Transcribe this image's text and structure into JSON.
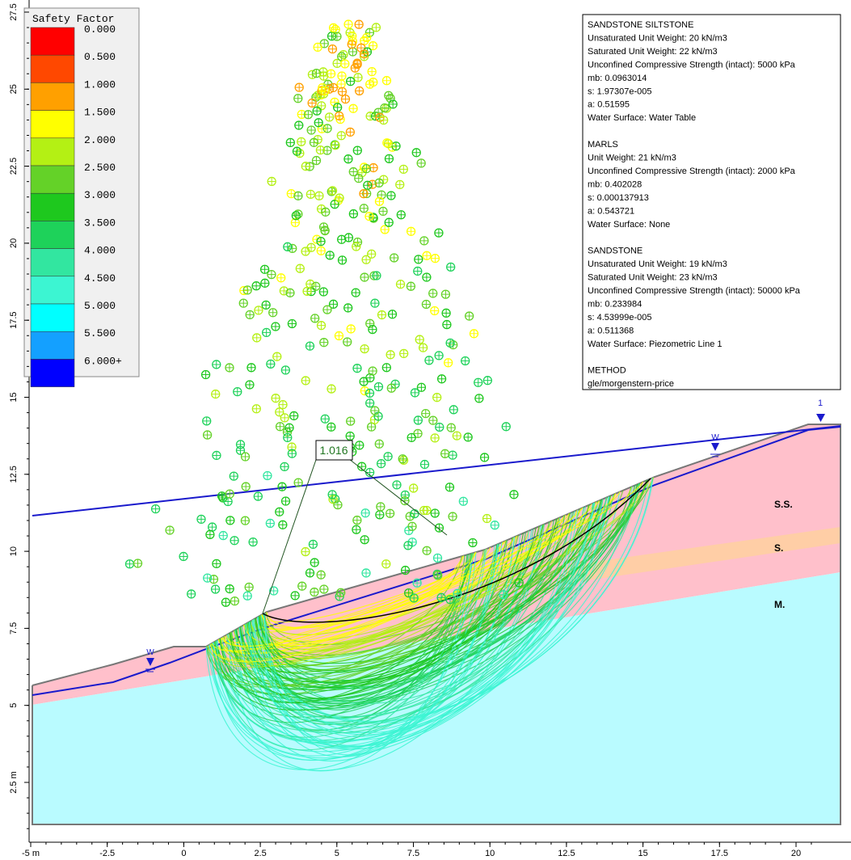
{
  "legend": {
    "title": "Safety Factor",
    "entries": [
      {
        "label": "0.000",
        "color": "#ff0000"
      },
      {
        "label": "0.500",
        "color": "#ff4800"
      },
      {
        "label": "1.000",
        "color": "#ffa000"
      },
      {
        "label": "1.500",
        "color": "#ffff00"
      },
      {
        "label": "2.000",
        "color": "#b4f014"
      },
      {
        "label": "2.500",
        "color": "#64d228"
      },
      {
        "label": "3.000",
        "color": "#1ec81e"
      },
      {
        "label": "3.500",
        "color": "#1ed25a"
      },
      {
        "label": "4.000",
        "color": "#32e6a0"
      },
      {
        "label": "4.500",
        "color": "#3cf5d2"
      },
      {
        "label": "5.000",
        "color": "#00ffff"
      },
      {
        "label": "5.500",
        "color": "#14a0ff"
      },
      {
        "label": "6.000+",
        "color": "#0000ff"
      }
    ]
  },
  "info": [
    {
      "name": "SANDSTONE  SILTSTONE",
      "lines": [
        "Unsaturated Unit Weight: 20 kN/m3",
        "Saturated Unit Weight: 22 kN/m3",
        "Unconfined Compressive Strength (intact): 5000 kPa",
        "mb: 0.0963014",
        "s: 1.97307e-005",
        "a: 0.51595",
        "Water Surface: Water Table"
      ]
    },
    {
      "name": "MARLS",
      "lines": [
        "Unit Weight: 21 kN/m3",
        "Unconfined Compressive Strength (intact): 2000 kPa",
        "mb: 0.402028",
        "s: 0.000137913",
        "a: 0.543721",
        "Water Surface: None"
      ]
    },
    {
      "name": "SANDSTONE",
      "lines": [
        "Unsaturated Unit Weight: 19 kN/m3",
        "Saturated Unit Weight: 23 kN/m3",
        "Unconfined Compressive Strength (intact): 50000 kPa",
        "mb: 0.233984",
        "s: 4.53999e-005",
        "a: 0.511368",
        "Water Surface: Piezometric Line 1"
      ]
    },
    {
      "name": "METHOD",
      "lines": [
        "gle/morgenstern-price"
      ]
    }
  ],
  "axes": {
    "x_labels": [
      "-5 m",
      "-2.5",
      "0",
      "2.5",
      "5",
      "7.5",
      "10",
      "12.5",
      "15",
      "17.5",
      "20"
    ],
    "y_labels": [
      "27.5",
      "25",
      "22.5",
      "20",
      "17.5",
      "15",
      "12.5",
      "10",
      "7.5",
      "5",
      "2.5 m"
    ]
  },
  "annotations": {
    "critical_factor": "1.016",
    "layers": [
      "S.S.",
      "S.",
      "M."
    ],
    "water_marks": [
      "W",
      "W"
    ],
    "piezo_label": "1"
  }
}
